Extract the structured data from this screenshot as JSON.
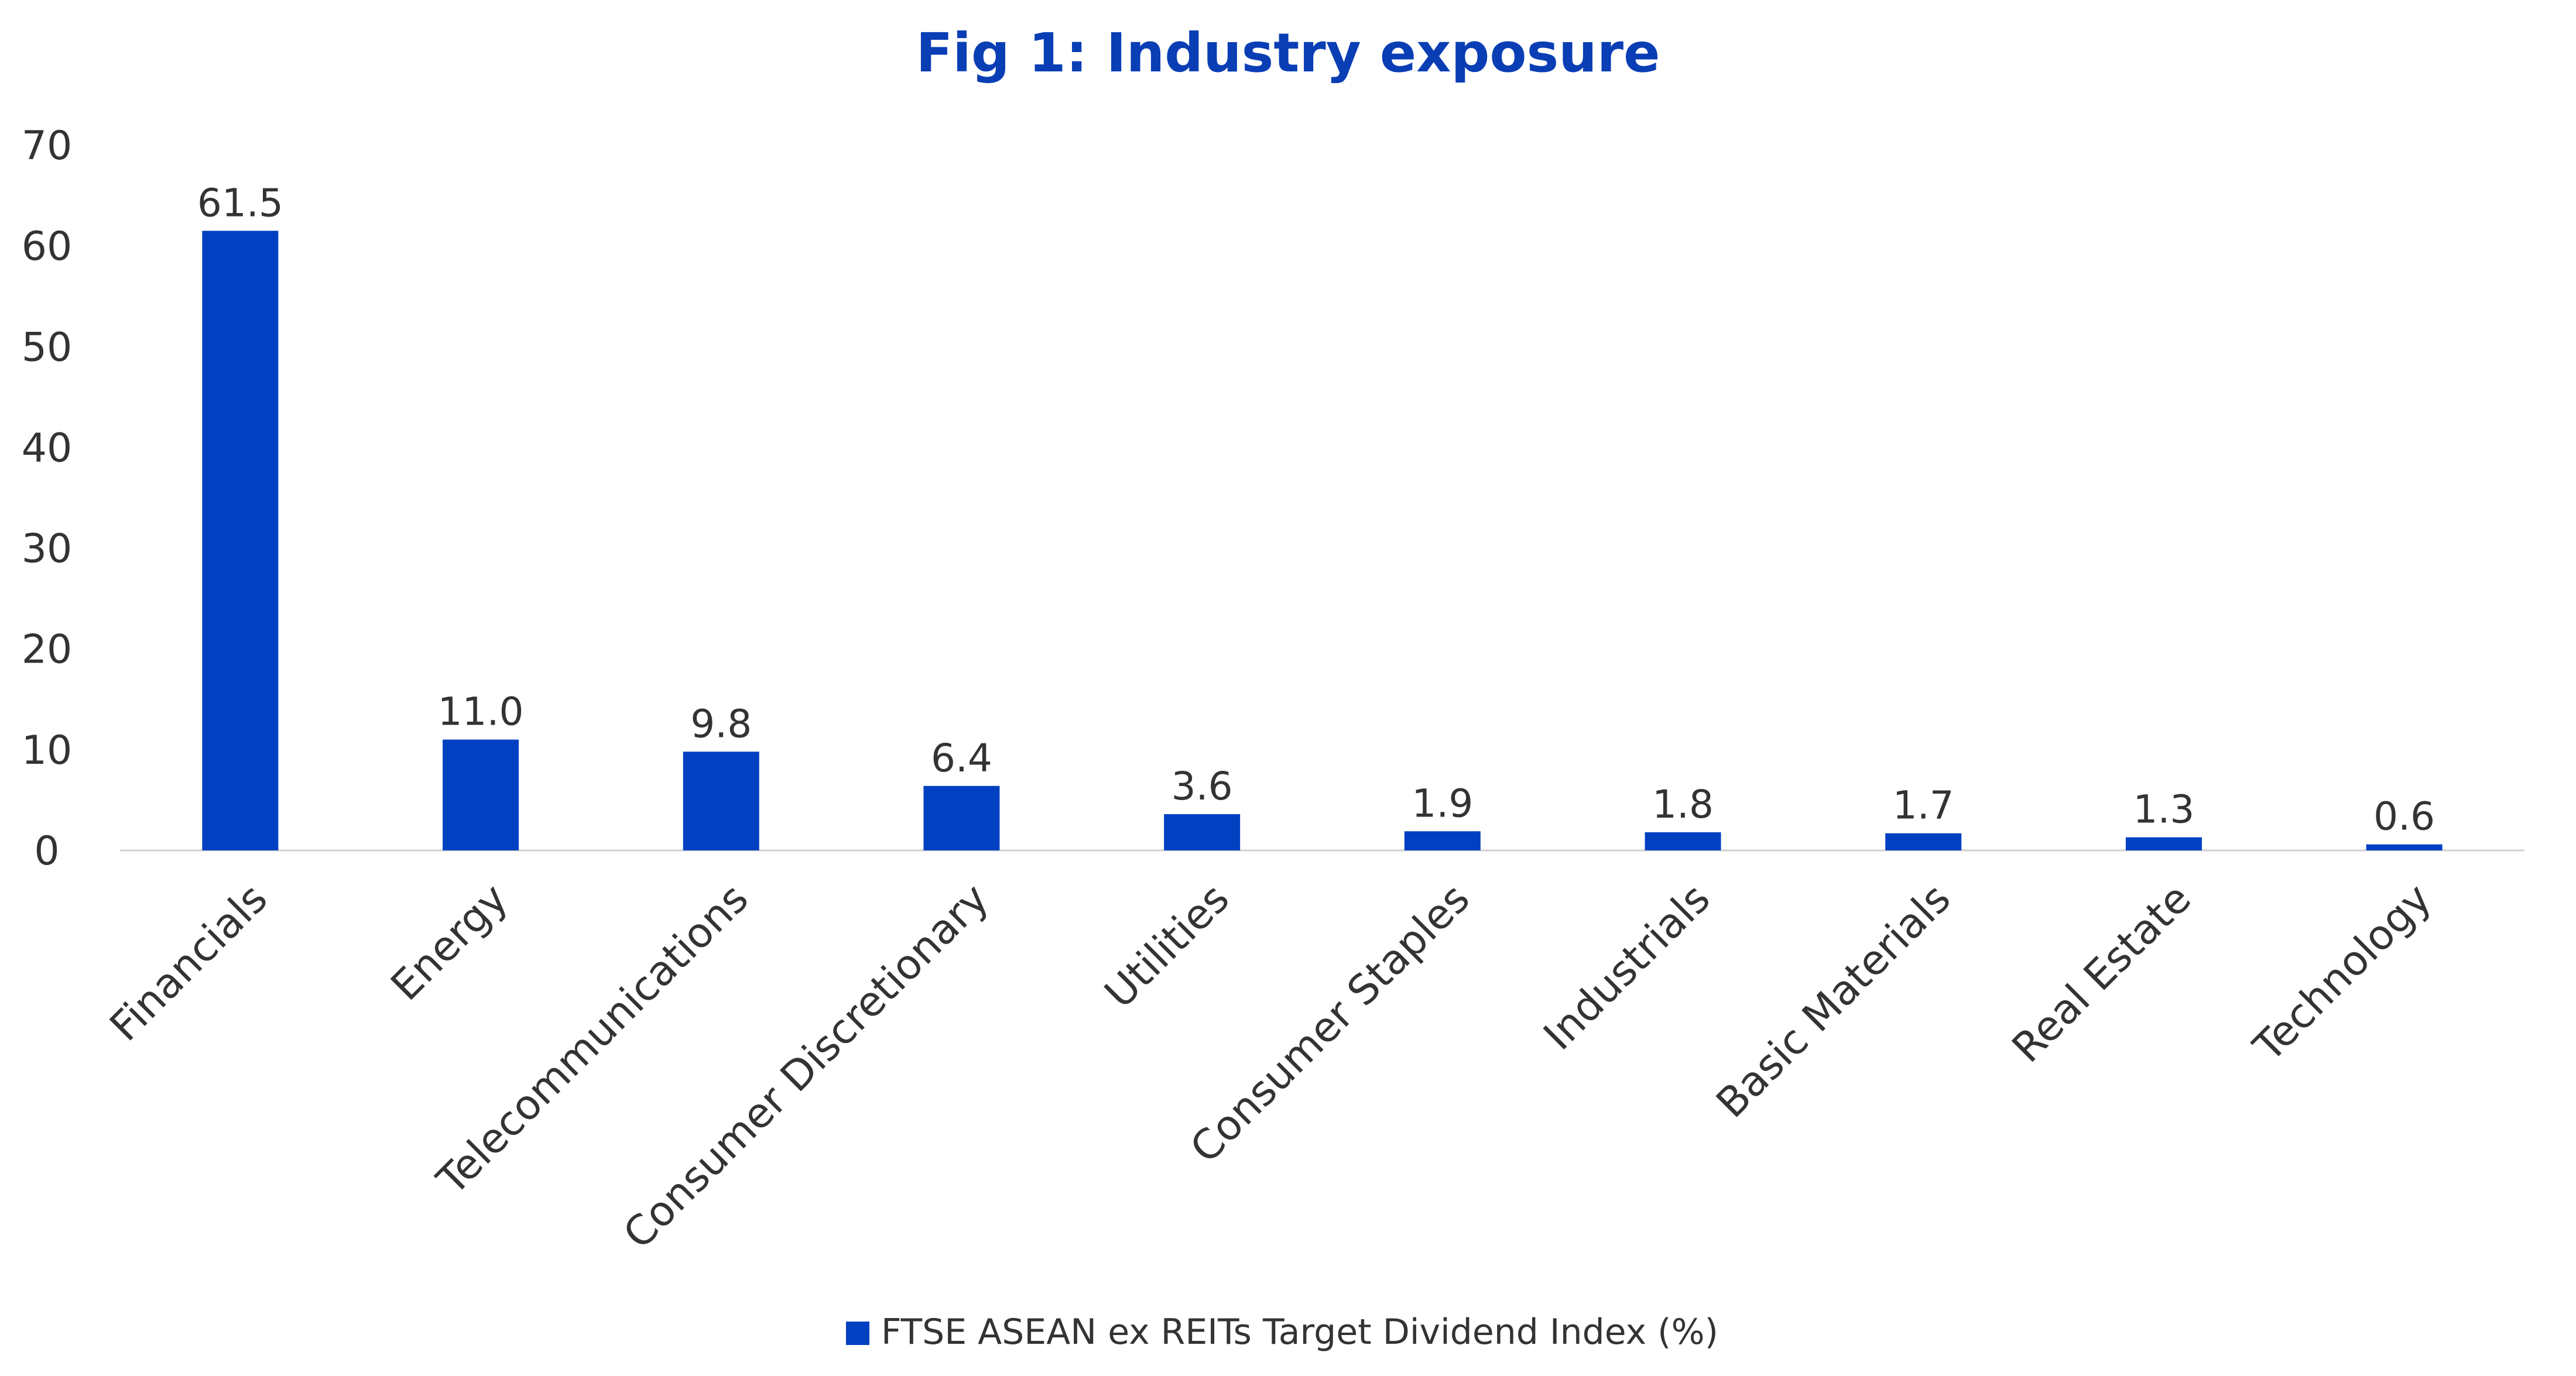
{
  "chart_data": {
    "type": "bar",
    "title": "Fig 1: Industry exposure",
    "xlabel": "",
    "ylabel": "",
    "categories": [
      "Financials",
      "Energy",
      "Telecommunications",
      "Consumer Discretionary",
      "Utilities",
      "Consumer Staples",
      "Industrials",
      "Basic Materials",
      "Real Estate",
      "Technology"
    ],
    "series": [
      {
        "name": "FTSE ASEAN ex REITs Target Dividend Index (%)",
        "values": [
          61.5,
          11.0,
          9.8,
          6.4,
          3.6,
          1.9,
          1.8,
          1.7,
          1.3,
          0.6
        ],
        "labels": [
          "61.5",
          "11.0",
          "9.8",
          "6.4",
          "3.6",
          "1.9",
          "1.8",
          "1.7",
          "1.3",
          "0.6"
        ]
      }
    ],
    "ylim": [
      0,
      70
    ],
    "yticks": [
      "0",
      "10",
      "20",
      "30",
      "40",
      "50",
      "60",
      "70"
    ],
    "grid": false,
    "legend_position": "bottom"
  },
  "colors": {
    "bar": "#0040C1",
    "title": "#0A3EB5",
    "text": "#333333",
    "axis": "#D0D0D0"
  }
}
